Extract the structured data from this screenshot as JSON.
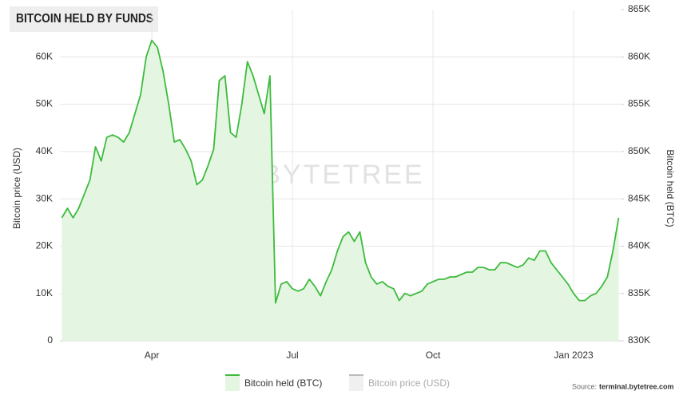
{
  "chart_data": {
    "type": "line",
    "title": "BITCOIN HELD BY FUNDS",
    "ylabel": "Bitcoin price (USD)",
    "y2label": "Bitcoin held (BTC)",
    "watermark": "BYTETREE",
    "source": {
      "label": "Source:",
      "site": "terminal.bytetree.com"
    },
    "categories": [
      null,
      null,
      null,
      null,
      null,
      null,
      null,
      null,
      null,
      null,
      null,
      null,
      null,
      null,
      null,
      null,
      "Apr",
      null,
      null,
      null,
      null,
      null,
      null,
      null,
      null,
      null,
      null,
      null,
      null,
      null,
      null,
      null,
      null,
      null,
      null,
      null,
      null,
      null,
      null,
      null,
      null,
      "Jul",
      null,
      null,
      null,
      null,
      null,
      null,
      null,
      null,
      null,
      null,
      null,
      null,
      null,
      null,
      null,
      null,
      null,
      null,
      null,
      null,
      null,
      null,
      null,
      null,
      "Oct",
      null,
      null,
      null,
      null,
      null,
      null,
      null,
      null,
      null,
      null,
      null,
      null,
      null,
      null,
      null,
      null,
      null,
      null,
      null,
      null,
      null,
      null,
      null,
      null,
      "Jan 2023",
      null,
      null,
      null,
      null,
      null,
      null,
      null,
      null
    ],
    "series": [
      {
        "name": "Bitcoin held (BTC)",
        "color": "#3dbb3d",
        "fill": "#e4f5e1",
        "axis": "y2",
        "values": [
          843000,
          844000,
          843000,
          844000,
          845500,
          847000,
          850500,
          849000,
          851500,
          851750,
          851500,
          851000,
          852000,
          854000,
          856000,
          860000,
          861750,
          861000,
          858500,
          855000,
          851000,
          851250,
          850250,
          849000,
          846500,
          847000,
          848500,
          850250,
          857500,
          858000,
          852000,
          851500,
          855000,
          859500,
          858000,
          856000,
          854000,
          858000,
          834000,
          836000,
          836250,
          835500,
          835250,
          835500,
          836500,
          835750,
          834750,
          836250,
          837500,
          839500,
          841000,
          841500,
          840500,
          841500,
          838250,
          836750,
          836000,
          836250,
          835750,
          835500,
          834250,
          835000,
          834750,
          835000,
          835250,
          836000,
          836250,
          836500,
          836500,
          836750,
          836750,
          837000,
          837250,
          837250,
          837750,
          837750,
          837500,
          837500,
          838250,
          838250,
          838000,
          837750,
          838000,
          838750,
          838500,
          839500,
          839500,
          838250,
          837500,
          836750,
          836000,
          835000,
          834250,
          834250,
          834750,
          835000,
          835750,
          836750,
          839500,
          843000
        ]
      },
      {
        "name": "Bitcoin price (USD)",
        "color": "#bbbbbb",
        "visible": false
      }
    ],
    "ylim": [
      0,
      70000
    ],
    "yticks": [
      0,
      {
        "value": 10000,
        "label": "10K"
      },
      {
        "value": 20000,
        "label": "20K"
      },
      {
        "value": 30000,
        "label": "30K"
      },
      {
        "value": 40000,
        "label": "40K"
      },
      {
        "value": 50000,
        "label": "50K"
      },
      {
        "value": 60000,
        "label": "60K"
      }
    ],
    "y2lim": [
      830000,
      865000
    ],
    "y2ticks": [
      {
        "value": 830000,
        "label": "830K"
      },
      {
        "value": 835000,
        "label": "835K"
      },
      {
        "value": 840000,
        "label": "840K"
      },
      {
        "value": 845000,
        "label": "845K"
      },
      {
        "value": 850000,
        "label": "850K"
      },
      {
        "value": 855000,
        "label": "855K"
      },
      {
        "value": 860000,
        "label": "860K"
      },
      {
        "value": 865000,
        "label": "865K"
      }
    ],
    "grid": true,
    "legend": "bottom"
  }
}
